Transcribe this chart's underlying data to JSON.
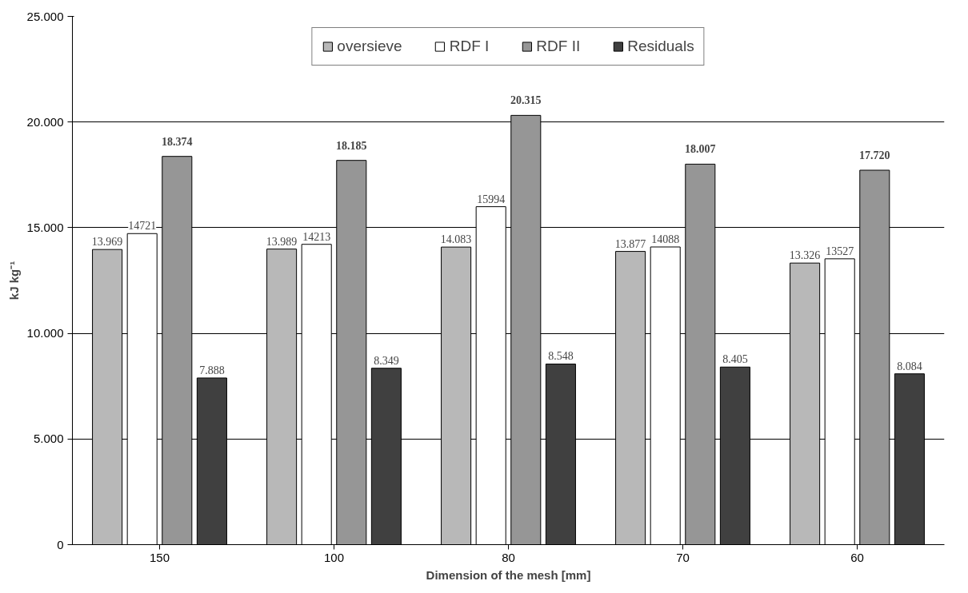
{
  "chart_data": {
    "type": "bar",
    "xlabel": "Dimension of the mesh [mm]",
    "ylabel": "kJ kg⁻¹",
    "categories": [
      "150",
      "100",
      "80",
      "70",
      "60"
    ],
    "series": [
      {
        "name": "oversieve",
        "color": "#b8b8b8",
        "values": [
          13969,
          13989,
          14083,
          13877,
          13326
        ],
        "value_labels": [
          "13.969",
          "13.989",
          "14.083",
          "13.877",
          "13.326"
        ]
      },
      {
        "name": "RDF I",
        "color": "#ffffff",
        "values": [
          14721,
          14213,
          15994,
          14088,
          13527
        ],
        "value_labels": [
          "14721",
          "14213",
          "15994",
          "14088",
          "13527"
        ]
      },
      {
        "name": "RDF II",
        "color": "#969696",
        "values": [
          18374,
          18185,
          20315,
          18007,
          17720
        ],
        "value_labels": [
          "18.374",
          "18.185",
          "20.315",
          "18.007",
          "17.720"
        ]
      },
      {
        "name": "Residuals",
        "color": "#404040",
        "values": [
          7888,
          8349,
          8548,
          8405,
          8084
        ],
        "value_labels": [
          "7.888",
          "8.349",
          "8.548",
          "8.405",
          "8.084"
        ]
      }
    ],
    "ylim": [
      0,
      25000
    ],
    "yticks": [
      0,
      {
        "value": 5000,
        "label": "5.000"
      },
      {
        "value": 10000,
        "label": "10.000"
      },
      {
        "value": 15000,
        "label": "15.000"
      },
      {
        "value": 20000,
        "label": "20.000"
      },
      {
        "value": 25000,
        "label": "25.000"
      }
    ],
    "grid": "y",
    "legend": "top"
  }
}
